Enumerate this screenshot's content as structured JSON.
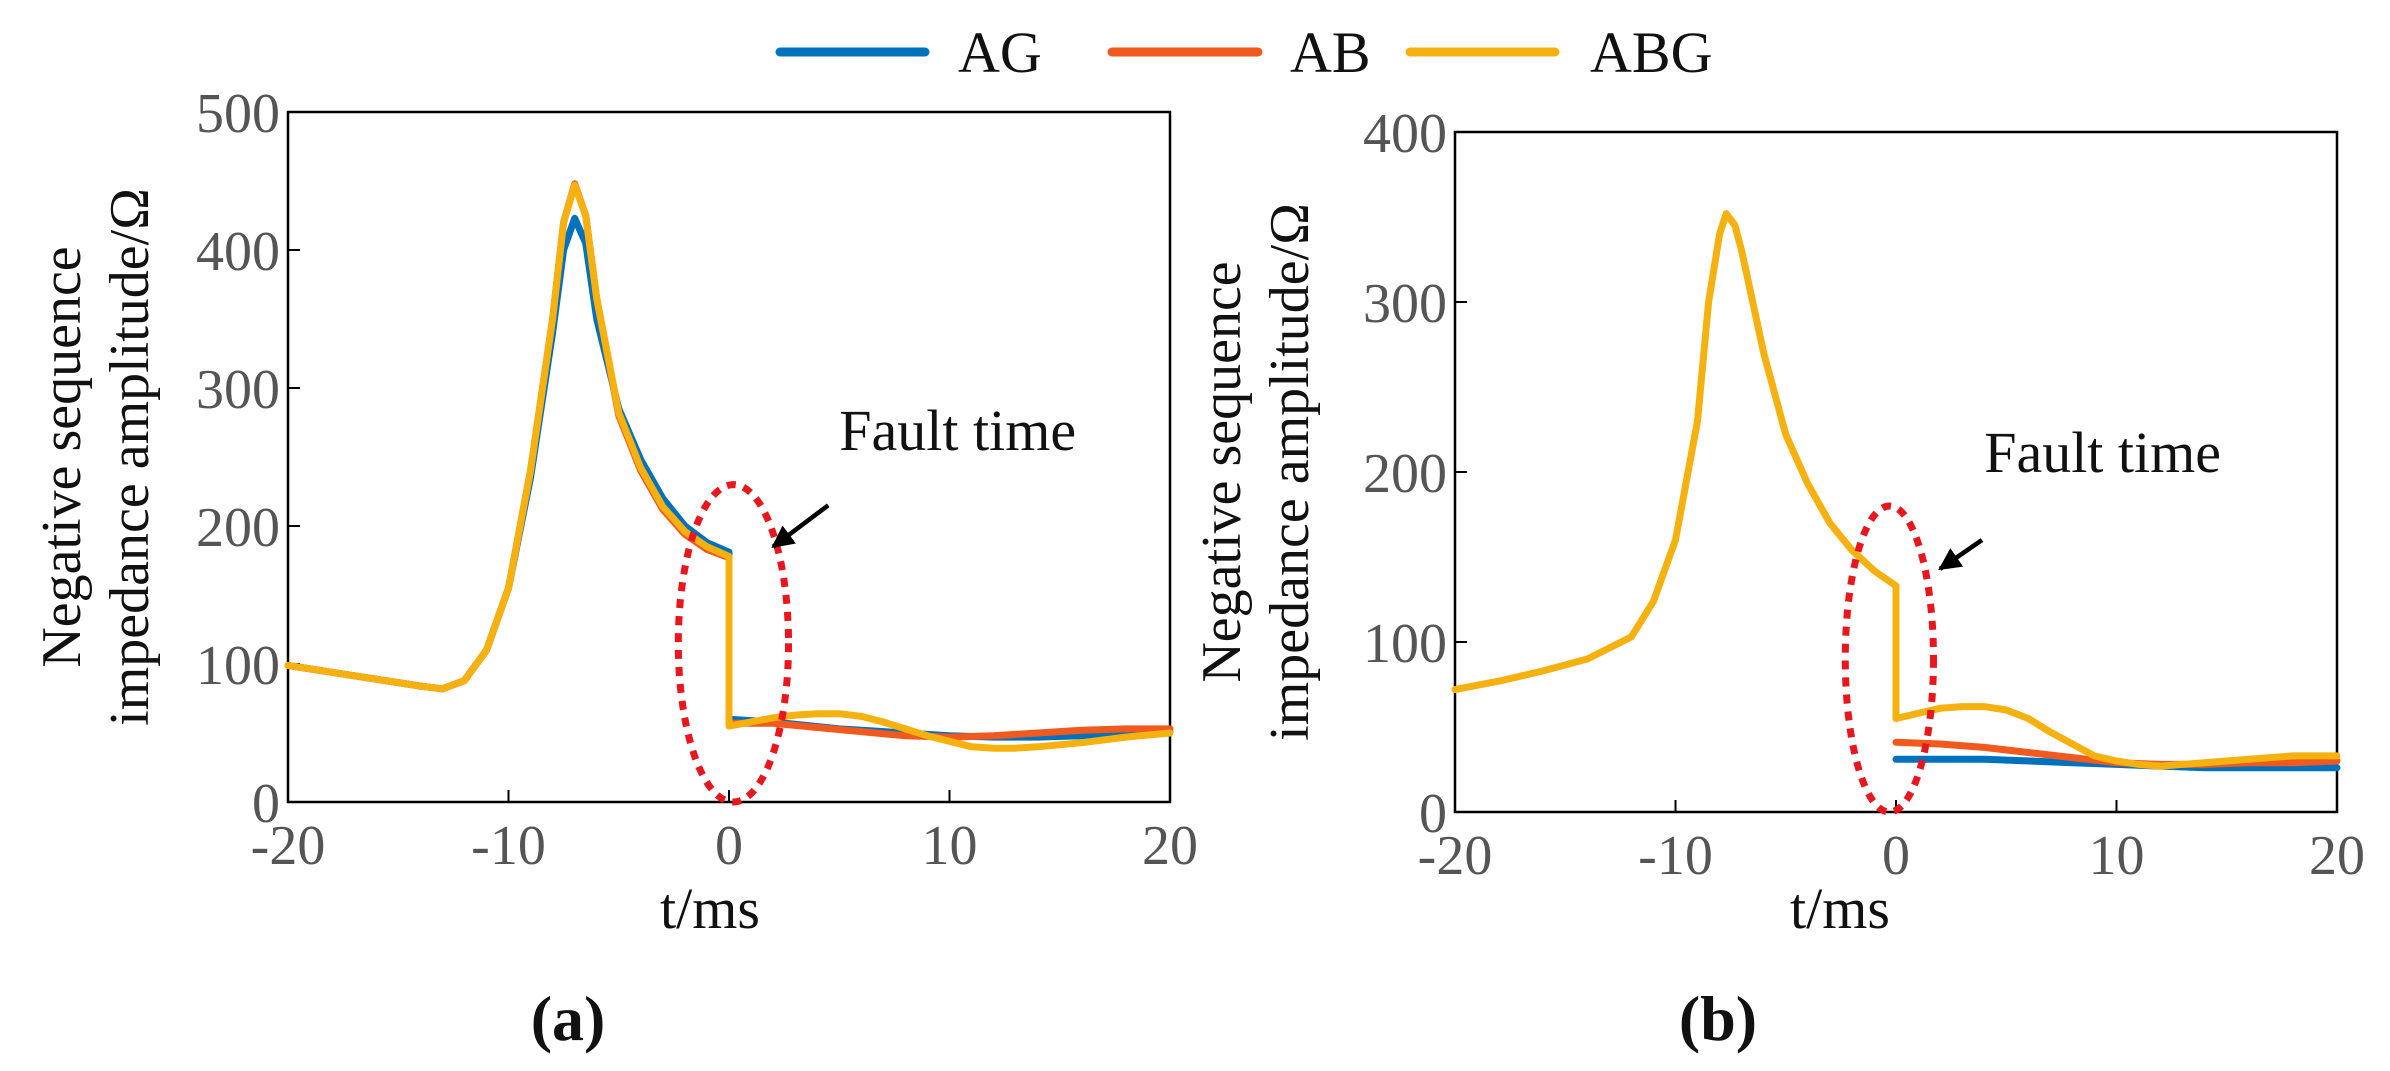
{
  "legend": {
    "entries": [
      {
        "label": "AG",
        "color": "#0072BD"
      },
      {
        "label": "AB",
        "color": "#F05A1E"
      },
      {
        "label": "ABG",
        "color": "#F5B10F"
      }
    ]
  },
  "colors": {
    "AG": "#0072BD",
    "AB": "#F05A1E",
    "ABG": "#F5B10F",
    "annotation": "#E8171E",
    "axis": "#000000",
    "tick_text": "#555555"
  },
  "chart_data": [
    {
      "type": "line",
      "panel_label": "(a)",
      "xlabel": "t/ms",
      "ylabel_line1": "Negative sequence",
      "ylabel_line2": "impedance amplitude/Ω",
      "xlim": [
        -20,
        20
      ],
      "ylim": [
        0,
        500
      ],
      "xticks": [
        -20,
        -10,
        0,
        10,
        20
      ],
      "yticks": [
        0,
        100,
        200,
        300,
        400,
        500
      ],
      "annotation": {
        "text": "Fault time",
        "ellipse_center": [
          0.2,
          115
        ],
        "ellipse_radius": [
          2.5,
          115
        ],
        "arrow_from": [
          4.5,
          215
        ],
        "arrow_to": [
          2,
          185
        ],
        "text_at": [
          5,
          255
        ]
      },
      "series": [
        {
          "name": "AG",
          "points": [
            [
              -20,
              99
            ],
            [
              -18,
              94
            ],
            [
              -16,
              89
            ],
            [
              -14,
              84
            ],
            [
              -13,
              82
            ],
            [
              -12,
              88
            ],
            [
              -11,
              110
            ],
            [
              -10,
              155
            ],
            [
              -9,
              235
            ],
            [
              -8,
              340
            ],
            [
              -7.5,
              400
            ],
            [
              -7,
              423
            ],
            [
              -6.5,
              405
            ],
            [
              -6,
              350
            ],
            [
              -5,
              285
            ],
            [
              -4,
              248
            ],
            [
              -3,
              220
            ],
            [
              -2,
              200
            ],
            [
              -1,
              188
            ],
            [
              0,
              181
            ],
            [
              0,
              60
            ],
            [
              2,
              58
            ],
            [
              5,
              53
            ],
            [
              8,
              50
            ],
            [
              10,
              48
            ],
            [
              12,
              47
            ],
            [
              14,
              47
            ],
            [
              16,
              48
            ],
            [
              18,
              49
            ],
            [
              20,
              51
            ]
          ]
        },
        {
          "name": "AB",
          "points": [
            [
              -20,
              99
            ],
            [
              -18,
              94
            ],
            [
              -16,
              89
            ],
            [
              -14,
              84
            ],
            [
              -13,
              82
            ],
            [
              -12,
              88
            ],
            [
              -11,
              110
            ],
            [
              -10,
              155
            ],
            [
              -9,
              240
            ],
            [
              -8,
              350
            ],
            [
              -7.5,
              420
            ],
            [
              -7,
              448
            ],
            [
              -6.5,
              425
            ],
            [
              -6,
              365
            ],
            [
              -5,
              280
            ],
            [
              -4,
              240
            ],
            [
              -3,
              212
            ],
            [
              -2,
              194
            ],
            [
              -1,
              183
            ],
            [
              0,
              177
            ],
            [
              0,
              57
            ],
            [
              2,
              57
            ],
            [
              4,
              54
            ],
            [
              6,
              51
            ],
            [
              8,
              48
            ],
            [
              10,
              47
            ],
            [
              12,
              48
            ],
            [
              14,
              50
            ],
            [
              16,
              52
            ],
            [
              18,
              53
            ],
            [
              20,
              53
            ]
          ]
        },
        {
          "name": "ABG",
          "points": [
            [
              -20,
              99
            ],
            [
              -18,
              94
            ],
            [
              -16,
              89
            ],
            [
              -14,
              84
            ],
            [
              -13,
              82
            ],
            [
              -12,
              88
            ],
            [
              -11,
              110
            ],
            [
              -10,
              155
            ],
            [
              -9,
              240
            ],
            [
              -8,
              350
            ],
            [
              -7.5,
              420
            ],
            [
              -7,
              447
            ],
            [
              -6.5,
              425
            ],
            [
              -6,
              365
            ],
            [
              -5,
              282
            ],
            [
              -4,
              242
            ],
            [
              -3,
              214
            ],
            [
              -2,
              196
            ],
            [
              -1,
              185
            ],
            [
              0,
              178
            ],
            [
              0,
              55
            ],
            [
              1,
              58
            ],
            [
              2,
              61
            ],
            [
              3,
              63
            ],
            [
              4,
              64
            ],
            [
              5,
              64
            ],
            [
              6,
              62
            ],
            [
              7,
              58
            ],
            [
              8,
              53
            ],
            [
              9,
              48
            ],
            [
              10,
              44
            ],
            [
              11,
              40
            ],
            [
              12,
              39
            ],
            [
              13,
              39
            ],
            [
              14,
              40
            ],
            [
              16,
              43
            ],
            [
              18,
              47
            ],
            [
              20,
              50
            ]
          ]
        }
      ]
    },
    {
      "type": "line",
      "panel_label": "(b)",
      "xlabel": "t/ms",
      "ylabel_line1": "Negative sequence",
      "ylabel_line2": "impedance amplitude/Ω",
      "xlim": [
        -20,
        20
      ],
      "ylim": [
        0,
        400
      ],
      "xticks": [
        -20,
        -10,
        0,
        10,
        20
      ],
      "yticks": [
        0,
        100,
        200,
        300,
        400
      ],
      "annotation": {
        "text": "Fault time",
        "ellipse_center": [
          -0.3,
          90
        ],
        "ellipse_radius": [
          2,
          90
        ],
        "arrow_from": [
          3.9,
          160
        ],
        "arrow_to": [
          2,
          143
        ],
        "text_at": [
          4,
          200
        ]
      },
      "series": [
        {
          "name": "AG",
          "points": [
            [
              0,
              31
            ],
            [
              4,
              31
            ],
            [
              8,
              29
            ],
            [
              10,
              28
            ],
            [
              12,
              27
            ],
            [
              14,
              26
            ],
            [
              16,
              26
            ],
            [
              18,
              26
            ],
            [
              20,
              26
            ]
          ]
        },
        {
          "name": "AB",
          "points": [
            [
              0,
              41
            ],
            [
              2,
              40
            ],
            [
              4,
              38
            ],
            [
              6,
              35
            ],
            [
              8,
              32
            ],
            [
              10,
              29
            ],
            [
              12,
              28
            ],
            [
              14,
              28
            ],
            [
              16,
              29
            ],
            [
              18,
              29
            ],
            [
              20,
              30
            ]
          ]
        },
        {
          "name": "ABG",
          "points": [
            [
              -20,
              72
            ],
            [
              -18,
              77
            ],
            [
              -16,
              83
            ],
            [
              -14,
              90
            ],
            [
              -12,
              103
            ],
            [
              -11,
              124
            ],
            [
              -10,
              160
            ],
            [
              -9,
              230
            ],
            [
              -8.5,
              300
            ],
            [
              -8,
              340
            ],
            [
              -7.7,
              352
            ],
            [
              -7.3,
              345
            ],
            [
              -7,
              330
            ],
            [
              -6,
              270
            ],
            [
              -5,
              222
            ],
            [
              -4,
              193
            ],
            [
              -3,
              170
            ],
            [
              -2,
              154
            ],
            [
              -1,
              142
            ],
            [
              0,
              133
            ],
            [
              0,
              55
            ],
            [
              1,
              58
            ],
            [
              2,
              61
            ],
            [
              3,
              62
            ],
            [
              4,
              62
            ],
            [
              5,
              60
            ],
            [
              6,
              55
            ],
            [
              7,
              47
            ],
            [
              8,
              40
            ],
            [
              9,
              33
            ],
            [
              10,
              30
            ],
            [
              11,
              28
            ],
            [
              12,
              27
            ],
            [
              13,
              28
            ],
            [
              14,
              29
            ],
            [
              16,
              31
            ],
            [
              18,
              33
            ],
            [
              20,
              33
            ]
          ]
        }
      ]
    }
  ]
}
